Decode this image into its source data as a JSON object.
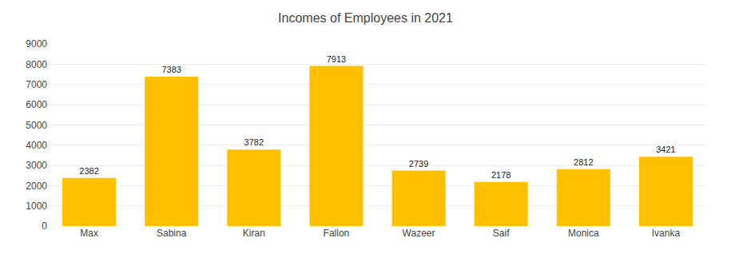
{
  "chart_data": {
    "type": "bar",
    "title": "Incomes of Employees in 2021",
    "categories": [
      "Max",
      "Sabina",
      "Kiran",
      "Fallon",
      "Wazeer",
      "Saif",
      "Monica",
      "Ivanka"
    ],
    "values": [
      2382,
      7383,
      3782,
      7913,
      2739,
      2178,
      2812,
      3421
    ],
    "color": "#FFC000",
    "ylim": [
      0,
      9000
    ],
    "yticks": [
      0,
      1000,
      2000,
      3000,
      4000,
      5000,
      6000,
      7000,
      8000,
      9000
    ],
    "grid": true,
    "data_labels": true
  }
}
